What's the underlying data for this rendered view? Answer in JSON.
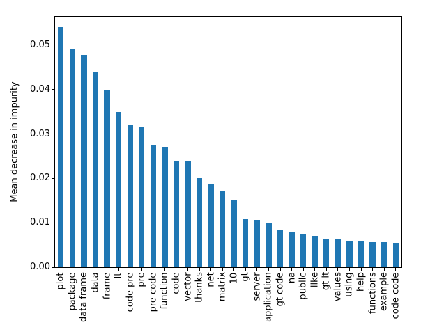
{
  "chart_data": {
    "type": "bar",
    "title": "",
    "xlabel": "",
    "ylabel": "Mean decrease in impurity",
    "categories": [
      "plot",
      "package",
      "data frame",
      "data",
      "frame",
      "lt",
      "code pre",
      "pre",
      "pre code",
      "function",
      "code",
      "vector",
      "thanks",
      "net",
      "matrix",
      "10",
      "gt",
      "server",
      "application",
      "gt code",
      "na",
      "public",
      "like",
      "gt lt",
      "values",
      "using",
      "help",
      "functions",
      "example",
      "code code"
    ],
    "values": [
      0.054,
      0.0491,
      0.0478,
      0.0441,
      0.0399,
      0.0349,
      0.032,
      0.0317,
      0.0276,
      0.0271,
      0.024,
      0.0238,
      0.02,
      0.0188,
      0.0171,
      0.0151,
      0.0108,
      0.0107,
      0.0098,
      0.0084,
      0.0078,
      0.0074,
      0.0071,
      0.0065,
      0.0062,
      0.006,
      0.0058,
      0.0057,
      0.0056,
      0.0055
    ],
    "ylim": [
      0,
      0.0564
    ],
    "yticks": [
      0,
      0.01,
      0.02,
      0.03,
      0.04,
      0.05
    ],
    "ytick_labels": [
      "0.00",
      "0.01",
      "0.02",
      "0.03",
      "0.04",
      "0.05"
    ],
    "bar_color": "#1f77b4",
    "background_color": "#ffffff",
    "grid": false,
    "legend": false,
    "xtick_rotation_deg": 90
  }
}
